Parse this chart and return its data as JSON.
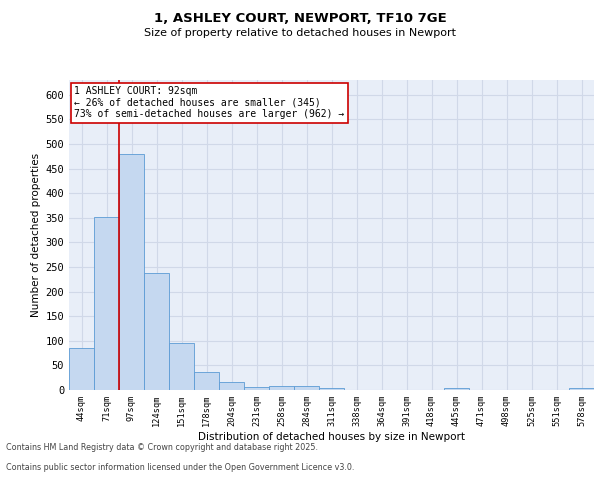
{
  "title1": "1, ASHLEY COURT, NEWPORT, TF10 7GE",
  "title2": "Size of property relative to detached houses in Newport",
  "xlabel": "Distribution of detached houses by size in Newport",
  "ylabel": "Number of detached properties",
  "categories": [
    "44sqm",
    "71sqm",
    "97sqm",
    "124sqm",
    "151sqm",
    "178sqm",
    "204sqm",
    "231sqm",
    "258sqm",
    "284sqm",
    "311sqm",
    "338sqm",
    "364sqm",
    "391sqm",
    "418sqm",
    "445sqm",
    "471sqm",
    "498sqm",
    "525sqm",
    "551sqm",
    "578sqm"
  ],
  "values": [
    85,
    351,
    480,
    237,
    96,
    37,
    17,
    7,
    8,
    8,
    5,
    0,
    0,
    0,
    0,
    5,
    0,
    0,
    0,
    0,
    5
  ],
  "bar_color": "#c5d8f0",
  "bar_edge_color": "#5b9bd5",
  "grid_color": "#d0d8e8",
  "background_color": "#e8eef8",
  "vline_x": 1.5,
  "vline_color": "#cc0000",
  "annotation_text": "1 ASHLEY COURT: 92sqm\n← 26% of detached houses are smaller (345)\n73% of semi-detached houses are larger (962) →",
  "annotation_box_color": "#cc0000",
  "footer_line1": "Contains HM Land Registry data © Crown copyright and database right 2025.",
  "footer_line2": "Contains public sector information licensed under the Open Government Licence v3.0.",
  "ylim": [
    0,
    630
  ],
  "yticks": [
    0,
    50,
    100,
    150,
    200,
    250,
    300,
    350,
    400,
    450,
    500,
    550,
    600
  ]
}
